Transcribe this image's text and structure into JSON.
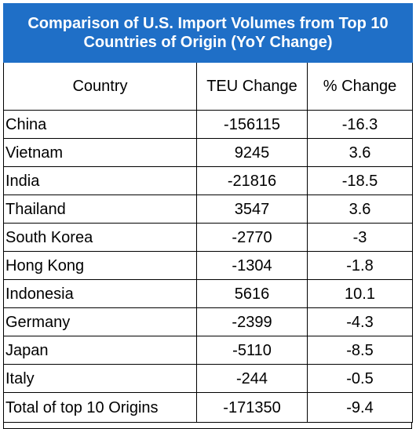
{
  "title": "Comparison of U.S. Import Volumes from Top 10 Countries of Origin (YoY Change)",
  "headers": {
    "country": "Country",
    "teu": "TEU Change",
    "pct": "% Change"
  },
  "rows": [
    {
      "country": "China",
      "teu": "-156115",
      "pct": "-16.3"
    },
    {
      "country": "Vietnam",
      "teu": "9245",
      "pct": "3.6"
    },
    {
      "country": "India",
      "teu": "-21816",
      "pct": "-18.5"
    },
    {
      "country": "Thailand",
      "teu": "3547",
      "pct": "3.6"
    },
    {
      "country": "South Korea",
      "teu": "-2770",
      "pct": "-3"
    },
    {
      "country": "Hong Kong",
      "teu": "-1304",
      "pct": "-1.8"
    },
    {
      "country": "Indonesia",
      "teu": "5616",
      "pct": "10.1"
    },
    {
      "country": "Germany",
      "teu": "-2399",
      "pct": "-4.3"
    },
    {
      "country": "Japan",
      "teu": "-5110",
      "pct": "-8.5"
    },
    {
      "country": "Italy",
      "teu": "-244",
      "pct": "-0.5"
    }
  ],
  "total": {
    "country": "Total of top 10 Origins",
    "teu": "-171350",
    "pct": "-9.4"
  },
  "colors": {
    "title_bg": "#1f6fc7",
    "title_text": "#ffffff"
  }
}
